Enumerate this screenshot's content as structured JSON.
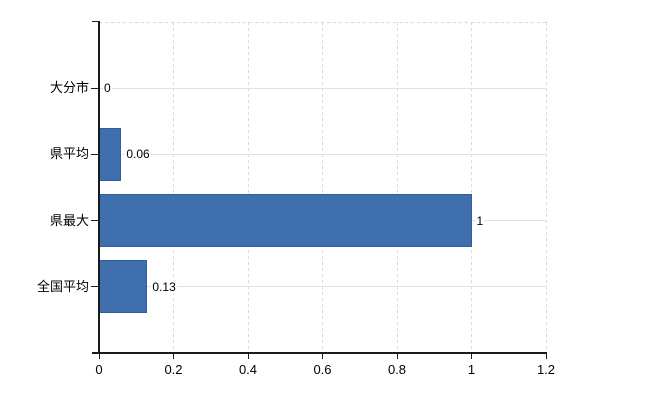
{
  "chart_data": {
    "type": "bar",
    "orientation": "horizontal",
    "title": "",
    "xlabel": "",
    "ylabel": "",
    "categories": [
      "大分市",
      "県平均",
      "県最大",
      "全国平均"
    ],
    "values": [
      0,
      0.06,
      1,
      0.13
    ],
    "value_labels": [
      "0",
      "0.06",
      "1",
      "0.13"
    ],
    "x_ticks": [
      "0",
      "0.2",
      "0.4",
      "0.6",
      "0.8",
      "1",
      "1.2"
    ],
    "x_tick_values": [
      0,
      0.2,
      0.4,
      0.6,
      0.8,
      1,
      1.2
    ],
    "xlim": [
      0,
      1.2
    ],
    "grid": true,
    "legend": false,
    "colors": {
      "bar": "#3f70ad",
      "bar_border": "#2e5f9e",
      "gridline_dashed": "#d9d9d9",
      "gridline_solid": "#dfe4df",
      "axis": "#1a1a1a",
      "text": "#000000",
      "background": "#ffffff"
    }
  }
}
